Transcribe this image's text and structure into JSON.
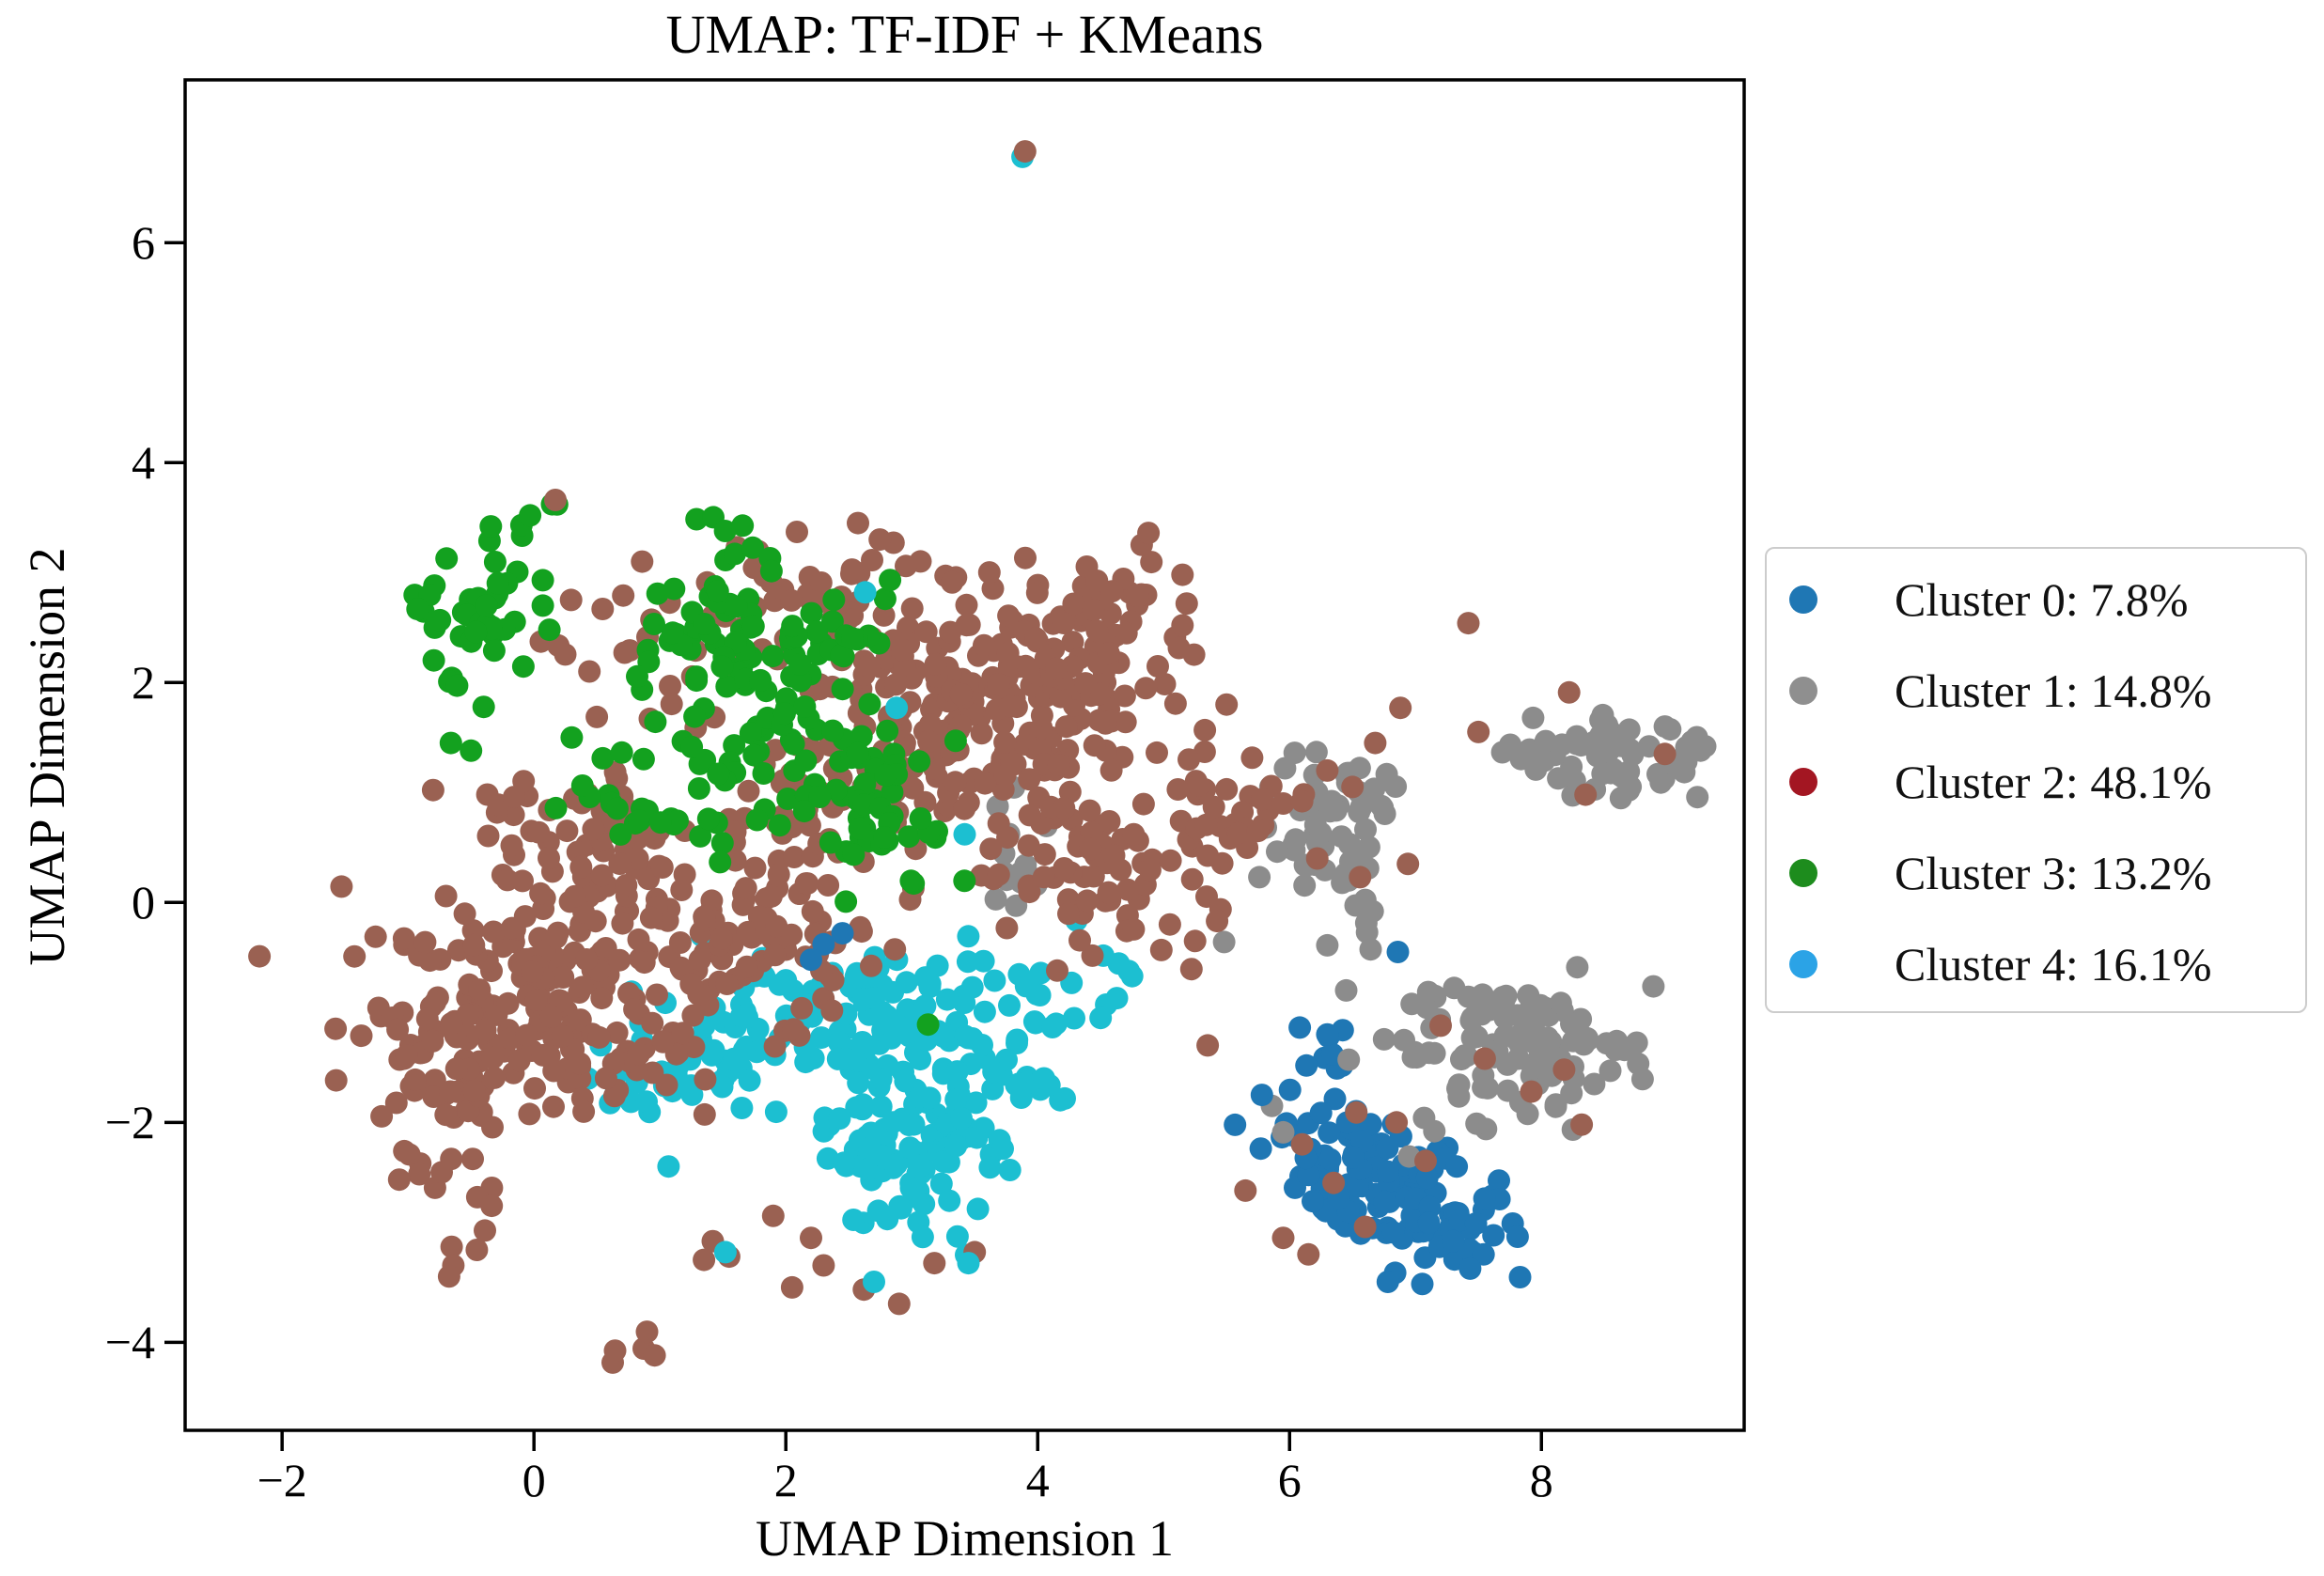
{
  "figure": {
    "background": "#ffffff",
    "spine_color": "#000000"
  },
  "chart_data": {
    "type": "scatter",
    "title": "UMAP: TF-IDF + KMeans",
    "xlabel": "UMAP Dimension 1",
    "ylabel": "UMAP Dimension 2",
    "xlim": [
      -2.77,
      9.61
    ],
    "ylim": [
      -4.8,
      7.48
    ],
    "xticks": [
      -2,
      0,
      2,
      4,
      6,
      8
    ],
    "yticks": [
      -4,
      -2,
      0,
      2,
      4,
      6
    ],
    "grid": false,
    "marker_radius_px": 12,
    "legend": {
      "position": "right-outside",
      "marker_radius_px": 15,
      "items": [
        {
          "label": "Cluster 0: 7.8%",
          "name": "Cluster 0",
          "pct": 7.8,
          "color": "#1f77b4"
        },
        {
          "label": "Cluster 1: 14.8%",
          "name": "Cluster 1",
          "pct": 14.8,
          "color": "#8f8f8f"
        },
        {
          "label": "Cluster 2: 48.1%",
          "name": "Cluster 2",
          "pct": 48.1,
          "color": "#a31622"
        },
        {
          "label": "Cluster 3: 13.2%",
          "name": "Cluster 3",
          "pct": 13.2,
          "color": "#1d8c1d"
        },
        {
          "label": "Cluster 4: 16.1%",
          "name": "Cluster 4",
          "pct": 16.1,
          "color": "#2ba3e6"
        }
      ]
    },
    "draw_order": [
      1,
      4,
      2,
      3,
      0
    ],
    "clusters": [
      {
        "name": "Cluster 0",
        "pct": 7.8,
        "color": "#1f77b4",
        "blobs": [
          {
            "cx": 6.9,
            "cy": -2.7,
            "sx": 0.38,
            "sy": 0.38,
            "n": 70,
            "seed": 61
          },
          {
            "cx": 6.3,
            "cy": -2.2,
            "sx": 0.35,
            "sy": 0.3,
            "n": 40,
            "seed": 62
          },
          {
            "cx": 7.25,
            "cy": -2.95,
            "sx": 0.28,
            "sy": 0.28,
            "n": 25,
            "seed": 63
          },
          {
            "cx": 6.35,
            "cy": -1.35,
            "sx": 0.14,
            "sy": 0.2,
            "n": 8,
            "seed": 64
          }
        ],
        "chains": [],
        "points": [],
        "top_points": [
          [
            2.3,
            -0.38
          ],
          [
            2.45,
            -0.28
          ],
          [
            2.2,
            -0.52
          ],
          [
            6.86,
            -0.45
          ],
          [
            6.3,
            -1.2
          ],
          [
            7.3,
            -3.08
          ],
          [
            7.48,
            -2.92
          ],
          [
            6.78,
            -3.45
          ],
          [
            5.78,
            -1.75
          ]
        ]
      },
      {
        "name": "Cluster 1",
        "pct": 14.8,
        "color": "#8c8c8c",
        "blobs": [
          {
            "cx": 6.35,
            "cy": 0.68,
            "sx": 0.28,
            "sy": 0.33,
            "n": 55,
            "seed": 51
          },
          {
            "cx": 8.62,
            "cy": 1.38,
            "sx": 0.35,
            "sy": 0.2,
            "n": 60,
            "seed": 52
          },
          {
            "cx": 7.8,
            "cy": -1.35,
            "sx": 0.48,
            "sy": 0.33,
            "n": 105,
            "seed": 53
          },
          {
            "cx": 3.85,
            "cy": 0.45,
            "sx": 0.22,
            "sy": 0.28,
            "n": 14,
            "seed": 54
          }
        ],
        "chains": [
          {
            "x1": 6.42,
            "y1": 0.25,
            "x2": 6.72,
            "y2": -0.35,
            "n": 7,
            "jitter": 0.05
          },
          {
            "x1": 7.62,
            "y1": 1.32,
            "x2": 8.2,
            "y2": 1.45,
            "n": 8,
            "jitter": 0.06
          }
        ],
        "points": [
          [
            6.45,
            -0.8
          ],
          [
            6.66,
            -0.08
          ],
          [
            6.3,
            -0.39
          ],
          [
            8.98,
            1.6
          ],
          [
            9.15,
            1.28
          ],
          [
            9.3,
            1.42
          ],
          [
            5.76,
            0.23
          ],
          [
            5.48,
            -0.36
          ]
        ],
        "top_points": [
          [
            5.95,
            -2.09
          ],
          [
            6.95,
            -2.31
          ],
          [
            7.15,
            -2.08
          ],
          [
            7.45,
            -1.05
          ],
          [
            5.86,
            -1.85
          ],
          [
            6.47,
            -1.43
          ]
        ]
      },
      {
        "name": "Cluster 2",
        "pct": 48.1,
        "color": "#9a6152",
        "blobs": [
          {
            "cx": 3.65,
            "cy": 1.85,
            "sx": 0.72,
            "sy": 0.6,
            "n": 230,
            "seed": 21
          },
          {
            "cx": 2.55,
            "cy": 2.85,
            "sx": 0.4,
            "sy": 0.3,
            "n": 30,
            "seed": 22
          },
          {
            "cx": 4.35,
            "cy": 0.2,
            "sx": 0.5,
            "sy": 0.45,
            "n": 60,
            "seed": 23
          },
          {
            "cx": 0.05,
            "cy": -0.9,
            "sx": 0.7,
            "sy": 0.55,
            "n": 210,
            "seed": 24
          },
          {
            "cx": 1.6,
            "cy": -0.25,
            "sx": 0.55,
            "sy": 0.5,
            "n": 90,
            "seed": 25
          },
          {
            "cx": 0.45,
            "cy": 0.55,
            "sx": 0.55,
            "sy": 0.38,
            "n": 55,
            "seed": 26
          },
          {
            "cx": 1.35,
            "cy": 2.3,
            "sx": 0.7,
            "sy": 0.45,
            "n": 40,
            "seed": 27
          },
          {
            "cx": -0.7,
            "cy": -1.7,
            "sx": 0.35,
            "sy": 0.4,
            "n": 40,
            "seed": 28
          },
          {
            "cx": 2.4,
            "cy": 1.0,
            "sx": 0.45,
            "sy": 0.5,
            "n": 60,
            "seed": 29
          },
          {
            "cx": 4.6,
            "cy": 2.6,
            "sx": 0.35,
            "sy": 0.4,
            "n": 30,
            "seed": 30
          },
          {
            "cx": 5.55,
            "cy": 0.75,
            "sx": 0.3,
            "sy": 0.3,
            "n": 30,
            "seed": 31
          }
        ],
        "chains": [
          {
            "x1": -0.28,
            "y1": -2.58,
            "x2": -0.68,
            "y2": -3.38,
            "n": 8,
            "jitter": 0.07
          },
          {
            "x1": 0.62,
            "y1": -4.22,
            "x2": 0.95,
            "y2": -3.95,
            "n": 5,
            "jitter": 0.05
          },
          {
            "x1": 1.62,
            "y1": 3.22,
            "x2": 2.05,
            "y2": 2.82,
            "n": 6,
            "jitter": 0.06
          },
          {
            "x1": -0.5,
            "y1": -2.3,
            "x2": -0.72,
            "y2": -2.45,
            "n": 3,
            "jitter": 0.04
          }
        ],
        "points": [
          [
            2.3,
            -3.3
          ],
          [
            2.62,
            -3.52
          ],
          [
            3.18,
            -3.28
          ],
          [
            3.5,
            -3.18
          ],
          [
            2.9,
            -3.65
          ],
          [
            1.42,
            -3.08
          ],
          [
            1.55,
            -3.22
          ],
          [
            1.35,
            -3.25
          ],
          [
            2.05,
            -3.5
          ],
          [
            1.9,
            -2.85
          ],
          [
            2.2,
            -3.05
          ]
        ],
        "top_points": [
          [
            3.9,
            6.83
          ],
          [
            -2.18,
            -0.49
          ],
          [
            0.17,
            3.66
          ],
          [
            3.32,
            2.91
          ],
          [
            5.15,
            2.98
          ],
          [
            5.15,
            2.52
          ],
          [
            4.88,
            3.36
          ],
          [
            5.75,
            0.65
          ],
          [
            5.95,
            0.9
          ],
          [
            6.1,
            0.92
          ],
          [
            6.22,
            0.4
          ],
          [
            6.3,
            1.2
          ],
          [
            6.5,
            1.05
          ],
          [
            6.56,
            0.23
          ],
          [
            6.94,
            0.35
          ],
          [
            6.68,
            1.45
          ],
          [
            6.88,
            1.77
          ],
          [
            7.42,
            2.54
          ],
          [
            8.22,
            1.91
          ],
          [
            7.5,
            1.55
          ],
          [
            8.98,
            1.35
          ],
          [
            8.35,
            0.98
          ],
          [
            7.2,
            -1.12
          ],
          [
            7.55,
            -1.42
          ],
          [
            7.92,
            -1.72
          ],
          [
            8.18,
            -1.52
          ],
          [
            8.32,
            -2.02
          ],
          [
            6.1,
            -2.2
          ],
          [
            6.35,
            -2.55
          ],
          [
            6.6,
            -2.95
          ],
          [
            6.15,
            -3.2
          ],
          [
            7.08,
            -2.35
          ],
          [
            6.85,
            -2.0
          ],
          [
            5.65,
            -2.62
          ],
          [
            5.95,
            -3.05
          ],
          [
            5.05,
            -0.2
          ],
          [
            5.25,
            -0.35
          ],
          [
            5.35,
            -1.3
          ],
          [
            5.2,
            1.3
          ],
          [
            5.5,
            1.8
          ],
          [
            6.53,
            -1.91
          ]
        ]
      },
      {
        "name": "Cluster 3",
        "pct": 13.2,
        "color": "#13a11f",
        "blobs": [
          {
            "cx": -0.5,
            "cy": 2.68,
            "sx": 0.27,
            "sy": 0.3,
            "n": 34,
            "seed": 71
          },
          {
            "cx": 1.35,
            "cy": 2.35,
            "sx": 0.35,
            "sy": 0.35,
            "n": 44,
            "seed": 72
          },
          {
            "cx": 2.0,
            "cy": 1.55,
            "sx": 0.42,
            "sy": 0.42,
            "n": 55,
            "seed": 73
          },
          {
            "cx": 2.7,
            "cy": 0.8,
            "sx": 0.35,
            "sy": 0.35,
            "n": 40,
            "seed": 74
          },
          {
            "cx": 0.95,
            "cy": 0.95,
            "sx": 0.35,
            "sy": 0.3,
            "n": 28,
            "seed": 75
          },
          {
            "cx": 2.45,
            "cy": 2.5,
            "sx": 0.3,
            "sy": 0.25,
            "n": 20,
            "seed": 76
          }
        ],
        "chains": [
          {
            "x1": -0.35,
            "y1": 3.28,
            "x2": 0.12,
            "y2": 3.62,
            "n": 7,
            "jitter": 0.05
          },
          {
            "x1": 1.38,
            "y1": 3.52,
            "x2": 1.85,
            "y2": 3.0,
            "n": 8,
            "jitter": 0.06
          },
          {
            "x1": -0.85,
            "y1": 2.2,
            "x2": -0.45,
            "y2": 1.85,
            "n": 5,
            "jitter": 0.06
          }
        ],
        "points": [
          [
            0.07,
            2.93
          ],
          [
            0.07,
            2.7
          ],
          [
            -0.66,
            1.45
          ],
          [
            -0.5,
            1.38
          ],
          [
            0.3,
            1.5
          ]
        ],
        "top_points": [
          [
            3.13,
            -1.11
          ]
        ]
      },
      {
        "name": "Cluster 4",
        "pct": 16.1,
        "color": "#1cbfd1",
        "blobs": [
          {
            "cx": 2.75,
            "cy": -0.9,
            "sx": 0.62,
            "sy": 0.28,
            "n": 90,
            "seed": 81
          },
          {
            "cx": 2.9,
            "cy": -2.1,
            "sx": 0.45,
            "sy": 0.5,
            "n": 115,
            "seed": 82
          },
          {
            "cx": 4.3,
            "cy": -0.8,
            "sx": 0.25,
            "sy": 0.28,
            "n": 14,
            "seed": 83
          },
          {
            "cx": 1.05,
            "cy": -1.55,
            "sx": 0.3,
            "sy": 0.4,
            "n": 28,
            "seed": 84
          },
          {
            "cx": 1.6,
            "cy": -1.3,
            "sx": 0.28,
            "sy": 0.28,
            "n": 22,
            "seed": 85
          },
          {
            "cx": 3.75,
            "cy": -1.65,
            "sx": 0.28,
            "sy": 0.3,
            "n": 22,
            "seed": 86
          }
        ],
        "chains": [],
        "points": [],
        "top_points": [
          [
            3.88,
            6.78
          ],
          [
            2.63,
            2.82
          ],
          [
            2.88,
            1.77
          ],
          [
            3.42,
            0.62
          ],
          [
            1.52,
            -3.18
          ],
          [
            3.45,
            -3.28
          ],
          [
            2.7,
            -3.45
          ],
          [
            4.05,
            -1.6
          ],
          [
            4.5,
            -1.05
          ],
          [
            4.75,
            -0.67
          ]
        ]
      }
    ]
  }
}
